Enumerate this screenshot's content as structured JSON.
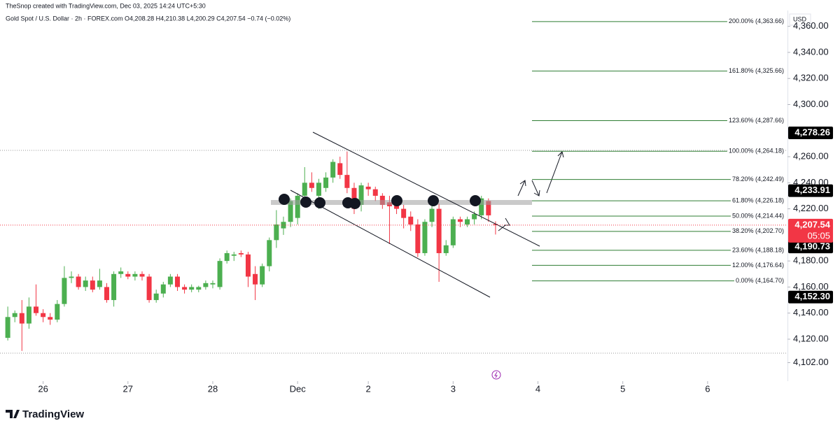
{
  "chart_data": {
    "type": "candlestick",
    "header": [
      "TheSnop created with TradingView.com, Dec 03, 2025 14:24 UTC+5:30",
      "Gold Spot / U.S. Dollar · 2h · FOREX.com  O4,208.28  H4,210.38  L4,200.29  C4,207.54  −0.74 (−0.02%)"
    ],
    "currency": "USD",
    "brand": "TradingView",
    "up_color": "#4caf50",
    "down_color": "#f23645",
    "candles": {
      "open": [
        4121,
        4137,
        4140,
        4132,
        4145,
        4140,
        4137,
        4135,
        4147,
        4167,
        4168,
        4160,
        4165,
        4160,
        4160,
        4150,
        4170,
        4170,
        4168,
        4170,
        4168,
        4150,
        4155,
        4162,
        4168,
        4160,
        4158,
        4158,
        4160,
        4162,
        4160,
        4180,
        4184,
        4186,
        4185,
        4170,
        4162,
        4176,
        4196,
        4205,
        4210,
        4213,
        4230,
        4240,
        4230,
        4236,
        4244,
        4255,
        4246,
        4236,
        4223,
        4237,
        4235,
        4230,
        4225,
        4225,
        4220,
        4214,
        4208,
        4186,
        4210,
        4220,
        4186,
        4192,
        4212,
        4208,
        4212,
        4215,
        4226,
        4208.28
      ],
      "high": [
        4145,
        4142,
        4150,
        4152,
        4162,
        4143,
        4140,
        4150,
        4176,
        4172,
        4170,
        4168,
        4168,
        4174,
        4163,
        4172,
        4175,
        4172,
        4172,
        4172,
        4170,
        4158,
        4164,
        4170,
        4170,
        4162,
        4162,
        4161,
        4165,
        4165,
        4182,
        4188,
        4187,
        4188,
        4187,
        4176,
        4178,
        4198,
        4219,
        4214,
        4228,
        4232,
        4252,
        4248,
        4243,
        4248,
        4258,
        4260,
        4264,
        4240,
        4240,
        4240,
        4237,
        4232,
        4230,
        4228,
        4223,
        4218,
        4212,
        4212,
        4228,
        4224,
        4196,
        4214,
        4214,
        4214,
        4218,
        4230,
        4228,
        4210.38
      ],
      "low": [
        4119,
        4133,
        4111,
        4128,
        4138,
        4133,
        4131,
        4133,
        4145,
        4163,
        4158,
        4157,
        4156,
        4158,
        4148,
        4145,
        4167,
        4166,
        4165,
        4165,
        4148,
        4148,
        4152,
        4160,
        4157,
        4155,
        4156,
        4156,
        4158,
        4159,
        4158,
        4178,
        4180,
        4183,
        4160,
        4150,
        4160,
        4172,
        4190,
        4200,
        4206,
        4208,
        4226,
        4233,
        4220,
        4233,
        4240,
        4243,
        4232,
        4216,
        4218,
        4230,
        4226,
        4220,
        4193,
        4216,
        4205,
        4203,
        4183,
        4184,
        4206,
        4164,
        4184,
        4190,
        4206,
        4206,
        4208,
        4212,
        4210,
        4200.29
      ],
      "close": [
        4137,
        4140,
        4132,
        4145,
        4140,
        4137,
        4135,
        4147,
        4167,
        4168,
        4160,
        4165,
        4158,
        4165,
        4150,
        4170,
        4172,
        4168,
        4170,
        4168,
        4150,
        4155,
        4162,
        4168,
        4160,
        4158,
        4160,
        4160,
        4163,
        4163,
        4180,
        4186,
        4185,
        4185,
        4168,
        4162,
        4176,
        4196,
        4208,
        4210,
        4226,
        4230,
        4240,
        4236,
        4240,
        4244,
        4256,
        4246,
        4236,
        4220,
        4238,
        4235,
        4230,
        4223,
        4222,
        4220,
        4213,
        4208,
        4186,
        4210,
        4220,
        4186,
        4192,
        4212,
        4210,
        4212,
        4216,
        4228,
        4215,
        4207.54
      ]
    },
    "xlim": [
      -1.1,
      110.3
    ],
    "xticks": [
      {
        "value": 5,
        "label": "26"
      },
      {
        "value": 17,
        "label": "27"
      },
      {
        "value": 29,
        "label": "28"
      },
      {
        "value": 41,
        "label": "Dec"
      },
      {
        "value": 51,
        "label": "2"
      },
      {
        "value": 63,
        "label": "3"
      },
      {
        "value": 75,
        "label": "4"
      },
      {
        "value": 87,
        "label": "5"
      },
      {
        "value": 99,
        "label": "6"
      }
    ],
    "ylim": [
      4087.8,
      4380.2
    ],
    "yticks": [
      {
        "value": 4360,
        "label": "4,360.00"
      },
      {
        "value": 4340,
        "label": "4,340.00"
      },
      {
        "value": 4320,
        "label": "4,320.00"
      },
      {
        "value": 4300,
        "label": "4,300.00"
      },
      {
        "value": 4260,
        "label": "4,260.00"
      },
      {
        "value": 4240,
        "label": "4,240.00"
      },
      {
        "value": 4220,
        "label": "4,220.00"
      },
      {
        "value": 4180,
        "label": "4,180.00"
      },
      {
        "value": 4160,
        "label": "4,160.00"
      },
      {
        "value": 4140,
        "label": "4,140.00"
      },
      {
        "value": 4120,
        "label": "4,120.00"
      },
      {
        "value": 4102,
        "label": "4,102.00"
      }
    ],
    "fib": {
      "color": "#2e7d32",
      "levels": [
        {
          "value": 4363.66,
          "label": "200.00% (4,363.66)"
        },
        {
          "value": 4325.66,
          "label": "161.80% (4,325.66)"
        },
        {
          "value": 4287.66,
          "label": "123.60% (4,287.66)"
        },
        {
          "value": 4264.18,
          "label": "100.00% (4,264.18)"
        },
        {
          "value": 4242.49,
          "label": "78.20% (4,242.49)"
        },
        {
          "value": 4226.18,
          "label": "61.80% (4,226.18)"
        },
        {
          "value": 4214.44,
          "label": "50.00% (4,214.44)"
        },
        {
          "value": 4202.7,
          "label": "38.20% (4,202.70)"
        },
        {
          "value": 4188.18,
          "label": "23.60% (4,188.18)"
        },
        {
          "value": 4176.64,
          "label": "12.00% (4,176.64)"
        },
        {
          "value": 4164.7,
          "label": "0.00% (4,164.70)"
        }
      ]
    },
    "price_tags": [
      {
        "value": 4278.26,
        "label": "4,278.26",
        "color": "#000000"
      },
      {
        "value": 4233.91,
        "label": "4,233.91",
        "color": "#000000"
      },
      {
        "value": 4190.73,
        "label": "4,190.73",
        "color": "#000000"
      },
      {
        "value": 4152.3,
        "label": "4,152.30",
        "color": "#000000"
      }
    ],
    "last_price": {
      "value": 4207.54,
      "label": "4,207.54",
      "color": "#f23645",
      "countdown": "05:05"
    }
  }
}
